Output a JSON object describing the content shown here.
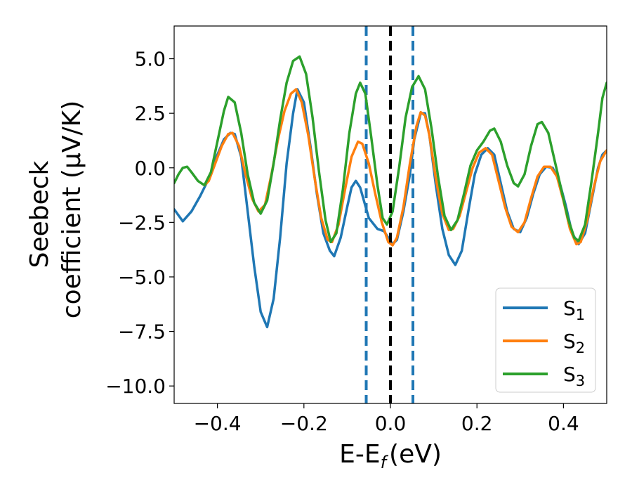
{
  "chart_data": {
    "type": "line",
    "xlabel": "E-E",
    "xlabel_sub": "f",
    "xlabel_unit": "(eV)",
    "ylabel_line1": "Seebeck",
    "ylabel_line2": "coefficient  (μV/K)",
    "xlim": [
      -0.5,
      0.5
    ],
    "ylim": [
      -10.8,
      6.5
    ],
    "xticks": [
      -0.4,
      -0.2,
      0.0,
      0.2,
      0.4
    ],
    "xtick_labels": [
      "−0.4",
      "−0.2",
      "0.0",
      "0.2",
      "0.4"
    ],
    "yticks": [
      5.0,
      2.5,
      0.0,
      -2.5,
      -5.0,
      -7.5,
      -10.0
    ],
    "ytick_labels": [
      "5.0",
      "2.5",
      "0.0",
      "−2.5",
      "−5.0",
      "−7.5",
      "−10.0"
    ],
    "legend_position": "lower-right",
    "vertical_lines": [
      {
        "x": -0.056,
        "style": "dashed",
        "color": "#1f77b4"
      },
      {
        "x": 0.0,
        "style": "dashed",
        "color": "#000000"
      },
      {
        "x": 0.052,
        "style": "dashed",
        "color": "#1f77b4"
      }
    ],
    "series": [
      {
        "name": "S",
        "sub": "1",
        "color": "#1f77b4",
        "points": [
          [
            -0.5,
            -1.9
          ],
          [
            -0.48,
            -2.45
          ],
          [
            -0.46,
            -2.0
          ],
          [
            -0.44,
            -1.3
          ],
          [
            -0.42,
            -0.5
          ],
          [
            -0.4,
            0.6
          ],
          [
            -0.385,
            1.3
          ],
          [
            -0.37,
            1.6
          ],
          [
            -0.36,
            1.55
          ],
          [
            -0.345,
            0.5
          ],
          [
            -0.33,
            -2.0
          ],
          [
            -0.315,
            -4.5
          ],
          [
            -0.3,
            -6.6
          ],
          [
            -0.285,
            -7.3
          ],
          [
            -0.27,
            -6.0
          ],
          [
            -0.255,
            -3.2
          ],
          [
            -0.24,
            0.2
          ],
          [
            -0.225,
            2.5
          ],
          [
            -0.215,
            3.6
          ],
          [
            -0.2,
            3.0
          ],
          [
            -0.185,
            1.0
          ],
          [
            -0.17,
            -1.2
          ],
          [
            -0.155,
            -3.0
          ],
          [
            -0.14,
            -3.8
          ],
          [
            -0.13,
            -4.05
          ],
          [
            -0.115,
            -3.2
          ],
          [
            -0.1,
            -1.8
          ],
          [
            -0.09,
            -0.9
          ],
          [
            -0.08,
            -0.6
          ],
          [
            -0.07,
            -0.9
          ],
          [
            -0.06,
            -1.6
          ],
          [
            -0.05,
            -2.3
          ],
          [
            -0.03,
            -2.8
          ],
          [
            -0.015,
            -2.9
          ],
          [
            -0.005,
            -3.2
          ],
          [
            0.005,
            -3.5
          ],
          [
            0.015,
            -3.3
          ],
          [
            0.03,
            -2.0
          ],
          [
            0.045,
            -0.3
          ],
          [
            0.055,
            1.3
          ],
          [
            0.07,
            2.5
          ],
          [
            0.08,
            2.5
          ],
          [
            0.09,
            1.5
          ],
          [
            0.105,
            -0.8
          ],
          [
            0.12,
            -2.8
          ],
          [
            0.135,
            -4.0
          ],
          [
            0.15,
            -4.45
          ],
          [
            0.165,
            -3.8
          ],
          [
            0.18,
            -2.0
          ],
          [
            0.195,
            -0.3
          ],
          [
            0.21,
            0.6
          ],
          [
            0.225,
            0.9
          ],
          [
            0.24,
            0.6
          ],
          [
            0.255,
            -0.7
          ],
          [
            0.27,
            -2.0
          ],
          [
            0.285,
            -2.8
          ],
          [
            0.3,
            -2.95
          ],
          [
            0.315,
            -2.3
          ],
          [
            0.33,
            -1.2
          ],
          [
            0.345,
            -0.3
          ],
          [
            0.36,
            0.05
          ],
          [
            0.375,
            0.0
          ],
          [
            0.39,
            -0.6
          ],
          [
            0.405,
            -1.7
          ],
          [
            0.42,
            -3.0
          ],
          [
            0.435,
            -3.5
          ],
          [
            0.45,
            -3.0
          ],
          [
            0.465,
            -1.5
          ],
          [
            0.48,
            0.0
          ],
          [
            0.49,
            0.6
          ],
          [
            0.5,
            0.8
          ]
        ]
      },
      {
        "name": "S",
        "sub": "2",
        "color": "#ff7f0e",
        "points": [
          [
            -0.43,
            -0.8
          ],
          [
            -0.42,
            -0.6
          ],
          [
            -0.405,
            0.2
          ],
          [
            -0.39,
            1.0
          ],
          [
            -0.375,
            1.55
          ],
          [
            -0.365,
            1.6
          ],
          [
            -0.35,
            1.0
          ],
          [
            -0.335,
            -0.3
          ],
          [
            -0.32,
            -1.4
          ],
          [
            -0.305,
            -2.0
          ],
          [
            -0.29,
            -1.7
          ],
          [
            -0.275,
            -0.3
          ],
          [
            -0.26,
            1.3
          ],
          [
            -0.245,
            2.6
          ],
          [
            -0.23,
            3.4
          ],
          [
            -0.218,
            3.6
          ],
          [
            -0.205,
            3.0
          ],
          [
            -0.19,
            1.5
          ],
          [
            -0.175,
            -0.5
          ],
          [
            -0.16,
            -2.3
          ],
          [
            -0.145,
            -3.3
          ],
          [
            -0.135,
            -3.4
          ],
          [
            -0.12,
            -2.6
          ],
          [
            -0.105,
            -1.0
          ],
          [
            -0.09,
            0.5
          ],
          [
            -0.075,
            1.2
          ],
          [
            -0.065,
            1.1
          ],
          [
            -0.05,
            0.2
          ],
          [
            -0.035,
            -1.2
          ],
          [
            -0.02,
            -2.5
          ],
          [
            -0.005,
            -3.4
          ],
          [
            0.005,
            -3.55
          ],
          [
            0.015,
            -3.2
          ],
          [
            0.03,
            -1.8
          ],
          [
            0.045,
            0.2
          ],
          [
            0.06,
            1.9
          ],
          [
            0.07,
            2.55
          ],
          [
            0.08,
            2.4
          ],
          [
            0.09,
            1.5
          ],
          [
            0.105,
            -0.5
          ],
          [
            0.12,
            -2.1
          ],
          [
            0.135,
            -2.85
          ],
          [
            0.145,
            -2.8
          ],
          [
            0.16,
            -2.2
          ],
          [
            0.175,
            -1.1
          ],
          [
            0.19,
            0.0
          ],
          [
            0.205,
            0.7
          ],
          [
            0.22,
            0.9
          ],
          [
            0.235,
            0.6
          ],
          [
            0.25,
            -0.6
          ],
          [
            0.265,
            -1.8
          ],
          [
            0.28,
            -2.7
          ],
          [
            0.295,
            -2.95
          ],
          [
            0.31,
            -2.5
          ],
          [
            0.325,
            -1.4
          ],
          [
            0.34,
            -0.4
          ],
          [
            0.355,
            0.05
          ],
          [
            0.37,
            0.05
          ],
          [
            0.385,
            -0.4
          ],
          [
            0.4,
            -1.5
          ],
          [
            0.415,
            -2.8
          ],
          [
            0.43,
            -3.5
          ],
          [
            0.44,
            -3.4
          ],
          [
            0.455,
            -2.4
          ],
          [
            0.47,
            -0.9
          ],
          [
            0.485,
            0.3
          ],
          [
            0.5,
            0.8
          ]
        ]
      },
      {
        "name": "S",
        "sub": "3",
        "color": "#2ca02c",
        "points": [
          [
            -0.5,
            -0.7
          ],
          [
            -0.49,
            -0.3
          ],
          [
            -0.48,
            0.0
          ],
          [
            -0.47,
            0.05
          ],
          [
            -0.46,
            -0.2
          ],
          [
            -0.445,
            -0.6
          ],
          [
            -0.43,
            -0.8
          ],
          [
            -0.415,
            -0.2
          ],
          [
            -0.4,
            1.2
          ],
          [
            -0.385,
            2.6
          ],
          [
            -0.375,
            3.25
          ],
          [
            -0.36,
            3.0
          ],
          [
            -0.345,
            1.6
          ],
          [
            -0.33,
            -0.3
          ],
          [
            -0.315,
            -1.6
          ],
          [
            -0.3,
            -2.1
          ],
          [
            -0.285,
            -1.5
          ],
          [
            -0.27,
            0.2
          ],
          [
            -0.255,
            2.2
          ],
          [
            -0.24,
            3.9
          ],
          [
            -0.225,
            4.9
          ],
          [
            -0.21,
            5.1
          ],
          [
            -0.195,
            4.3
          ],
          [
            -0.18,
            2.3
          ],
          [
            -0.165,
            -0.2
          ],
          [
            -0.15,
            -2.4
          ],
          [
            -0.138,
            -3.4
          ],
          [
            -0.125,
            -3.0
          ],
          [
            -0.11,
            -1.0
          ],
          [
            -0.095,
            1.6
          ],
          [
            -0.08,
            3.4
          ],
          [
            -0.07,
            3.9
          ],
          [
            -0.058,
            3.4
          ],
          [
            -0.045,
            1.5
          ],
          [
            -0.03,
            -0.8
          ],
          [
            -0.018,
            -2.3
          ],
          [
            -0.008,
            -2.6
          ],
          [
            0.005,
            -2.0
          ],
          [
            0.02,
            0.0
          ],
          [
            0.035,
            2.3
          ],
          [
            0.05,
            3.7
          ],
          [
            0.065,
            4.2
          ],
          [
            0.08,
            3.6
          ],
          [
            0.095,
            1.8
          ],
          [
            0.11,
            -0.4
          ],
          [
            0.125,
            -2.2
          ],
          [
            0.14,
            -2.85
          ],
          [
            0.155,
            -2.4
          ],
          [
            0.17,
            -1.2
          ],
          [
            0.185,
            0.1
          ],
          [
            0.2,
            0.8
          ],
          [
            0.215,
            1.2
          ],
          [
            0.23,
            1.7
          ],
          [
            0.24,
            1.8
          ],
          [
            0.255,
            1.2
          ],
          [
            0.27,
            0.1
          ],
          [
            0.285,
            -0.7
          ],
          [
            0.295,
            -0.85
          ],
          [
            0.31,
            -0.3
          ],
          [
            0.325,
            1.0
          ],
          [
            0.34,
            2.0
          ],
          [
            0.35,
            2.1
          ],
          [
            0.365,
            1.6
          ],
          [
            0.38,
            0.3
          ],
          [
            0.395,
            -1.0
          ],
          [
            0.41,
            -2.3
          ],
          [
            0.425,
            -3.2
          ],
          [
            0.435,
            -3.35
          ],
          [
            0.45,
            -2.6
          ],
          [
            0.465,
            -0.6
          ],
          [
            0.48,
            1.6
          ],
          [
            0.49,
            3.2
          ],
          [
            0.5,
            3.9
          ]
        ]
      }
    ]
  }
}
